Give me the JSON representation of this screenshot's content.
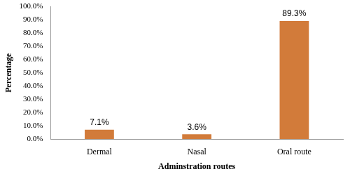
{
  "chart_data": {
    "type": "bar",
    "x_label": "Adminstration routes",
    "y_label": "Percentage",
    "categories": [
      "Dermal",
      "Nasal",
      "Oral route"
    ],
    "values": [
      7.1,
      3.6,
      89.3
    ],
    "value_labels": [
      "7.1%",
      "3.6%",
      "89.3%"
    ],
    "color": "#d27b3a",
    "ylim": [
      0,
      100
    ],
    "yticks": [
      {
        "value": 0,
        "label": "0.0%"
      },
      {
        "value": 10,
        "label": "10.0%"
      },
      {
        "value": 20,
        "label": "20.0%"
      },
      {
        "value": 30,
        "label": "30.0%"
      },
      {
        "value": 40,
        "label": "40.0%"
      },
      {
        "value": 50,
        "label": "50.0%"
      },
      {
        "value": 60,
        "label": "60.0%"
      },
      {
        "value": 70,
        "label": "70.0%"
      },
      {
        "value": 80,
        "label": "80.0%"
      },
      {
        "value": 90,
        "label": "90.0%"
      },
      {
        "value": 100,
        "label": "100.0%"
      }
    ],
    "grid": false,
    "data_labels": true
  }
}
